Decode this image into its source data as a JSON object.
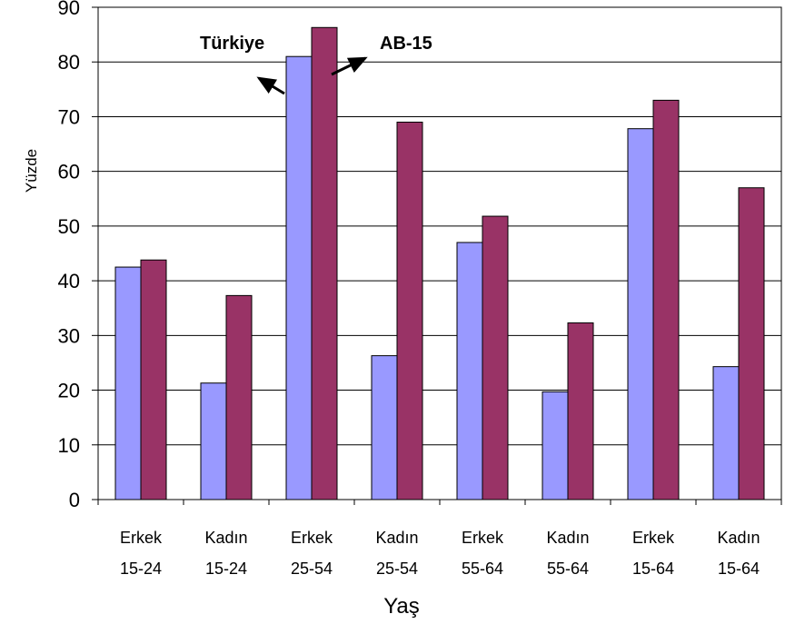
{
  "chart_data": {
    "type": "bar",
    "categories": [
      [
        "Erkek",
        "15-24"
      ],
      [
        "Kadın",
        "15-24"
      ],
      [
        "Erkek",
        "25-54"
      ],
      [
        "Kadın",
        "25-54"
      ],
      [
        "Erkek",
        "55-64"
      ],
      [
        "Kadın",
        "55-64"
      ],
      [
        "Erkek",
        "15-64"
      ],
      [
        "Kadın",
        "15-64"
      ]
    ],
    "series": [
      {
        "name": "Türkiye",
        "color": "#9999ff",
        "values": [
          42.5,
          21.3,
          81,
          26.3,
          47,
          19.7,
          67.8,
          24.3
        ]
      },
      {
        "name": "AB-15",
        "color": "#993366",
        "values": [
          43.8,
          37.3,
          86.3,
          69,
          51.8,
          32.3,
          73,
          57
        ]
      }
    ],
    "title": "",
    "xlabel": "Yaş",
    "ylabel": "Yüzde",
    "ylim": [
      0,
      90
    ],
    "yticks": [
      0,
      10,
      20,
      30,
      40,
      50,
      60,
      70,
      80,
      90
    ],
    "grid": true,
    "legend": "annotations with arrows near the 25-54 male bars"
  }
}
